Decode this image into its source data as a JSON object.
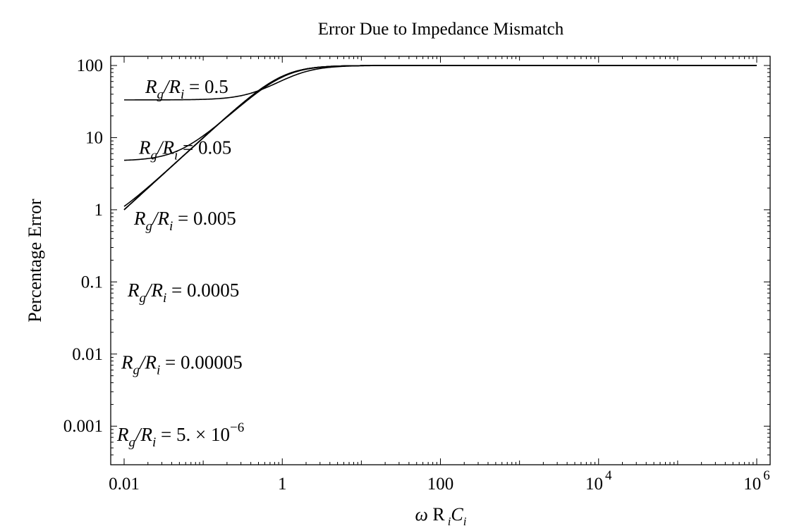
{
  "chart_data": {
    "type": "line",
    "title": "Error Due to Impedance Mismatch",
    "xlabel": {
      "omega": "ω",
      "R": "R",
      "Ri_sub": "i",
      "C": "C",
      "Ci_sub": "i"
    },
    "ylabel": "Percentage Error",
    "x_scale": "log",
    "y_scale": "log",
    "xlim": [
      0.01,
      1000000
    ],
    "ylim": [
      0.0004,
      100
    ],
    "x_ticks": [
      {
        "value": 0.01,
        "label": "0.01"
      },
      {
        "value": 1,
        "label": "1"
      },
      {
        "value": 100,
        "label": "100"
      },
      {
        "value": 10000,
        "label": "10",
        "exp": "4"
      },
      {
        "value": 1000000,
        "label": "10",
        "exp": "6"
      }
    ],
    "y_ticks": [
      {
        "value": 100,
        "label": "100"
      },
      {
        "value": 10,
        "label": "10"
      },
      {
        "value": 1,
        "label": "1"
      },
      {
        "value": 0.1,
        "label": "0.1"
      },
      {
        "value": 0.01,
        "label": "0.01"
      },
      {
        "value": 0.001,
        "label": "0.001"
      }
    ],
    "series": [
      {
        "name": "R_g/R_i = 0.5",
        "ratio": 0.5,
        "label_value": "0.5"
      },
      {
        "name": "R_g/R_i = 0.05",
        "ratio": 0.05,
        "label_value": "0.05"
      },
      {
        "name": "R_g/R_i = 0.005",
        "ratio": 0.005,
        "label_value": "0.005"
      },
      {
        "name": "R_g/R_i = 0.0005",
        "ratio": 0.0005,
        "label_value": "0.0005"
      },
      {
        "name": "R_g/R_i = 0.00005",
        "ratio": 5e-05,
        "label_value": "0.00005"
      },
      {
        "name": "R_g/R_i = 5. × 10^-6",
        "ratio": 5e-06,
        "label_value": "5. × 10",
        "label_exp": "−6"
      }
    ],
    "grid": false,
    "line_color": "#000000"
  }
}
